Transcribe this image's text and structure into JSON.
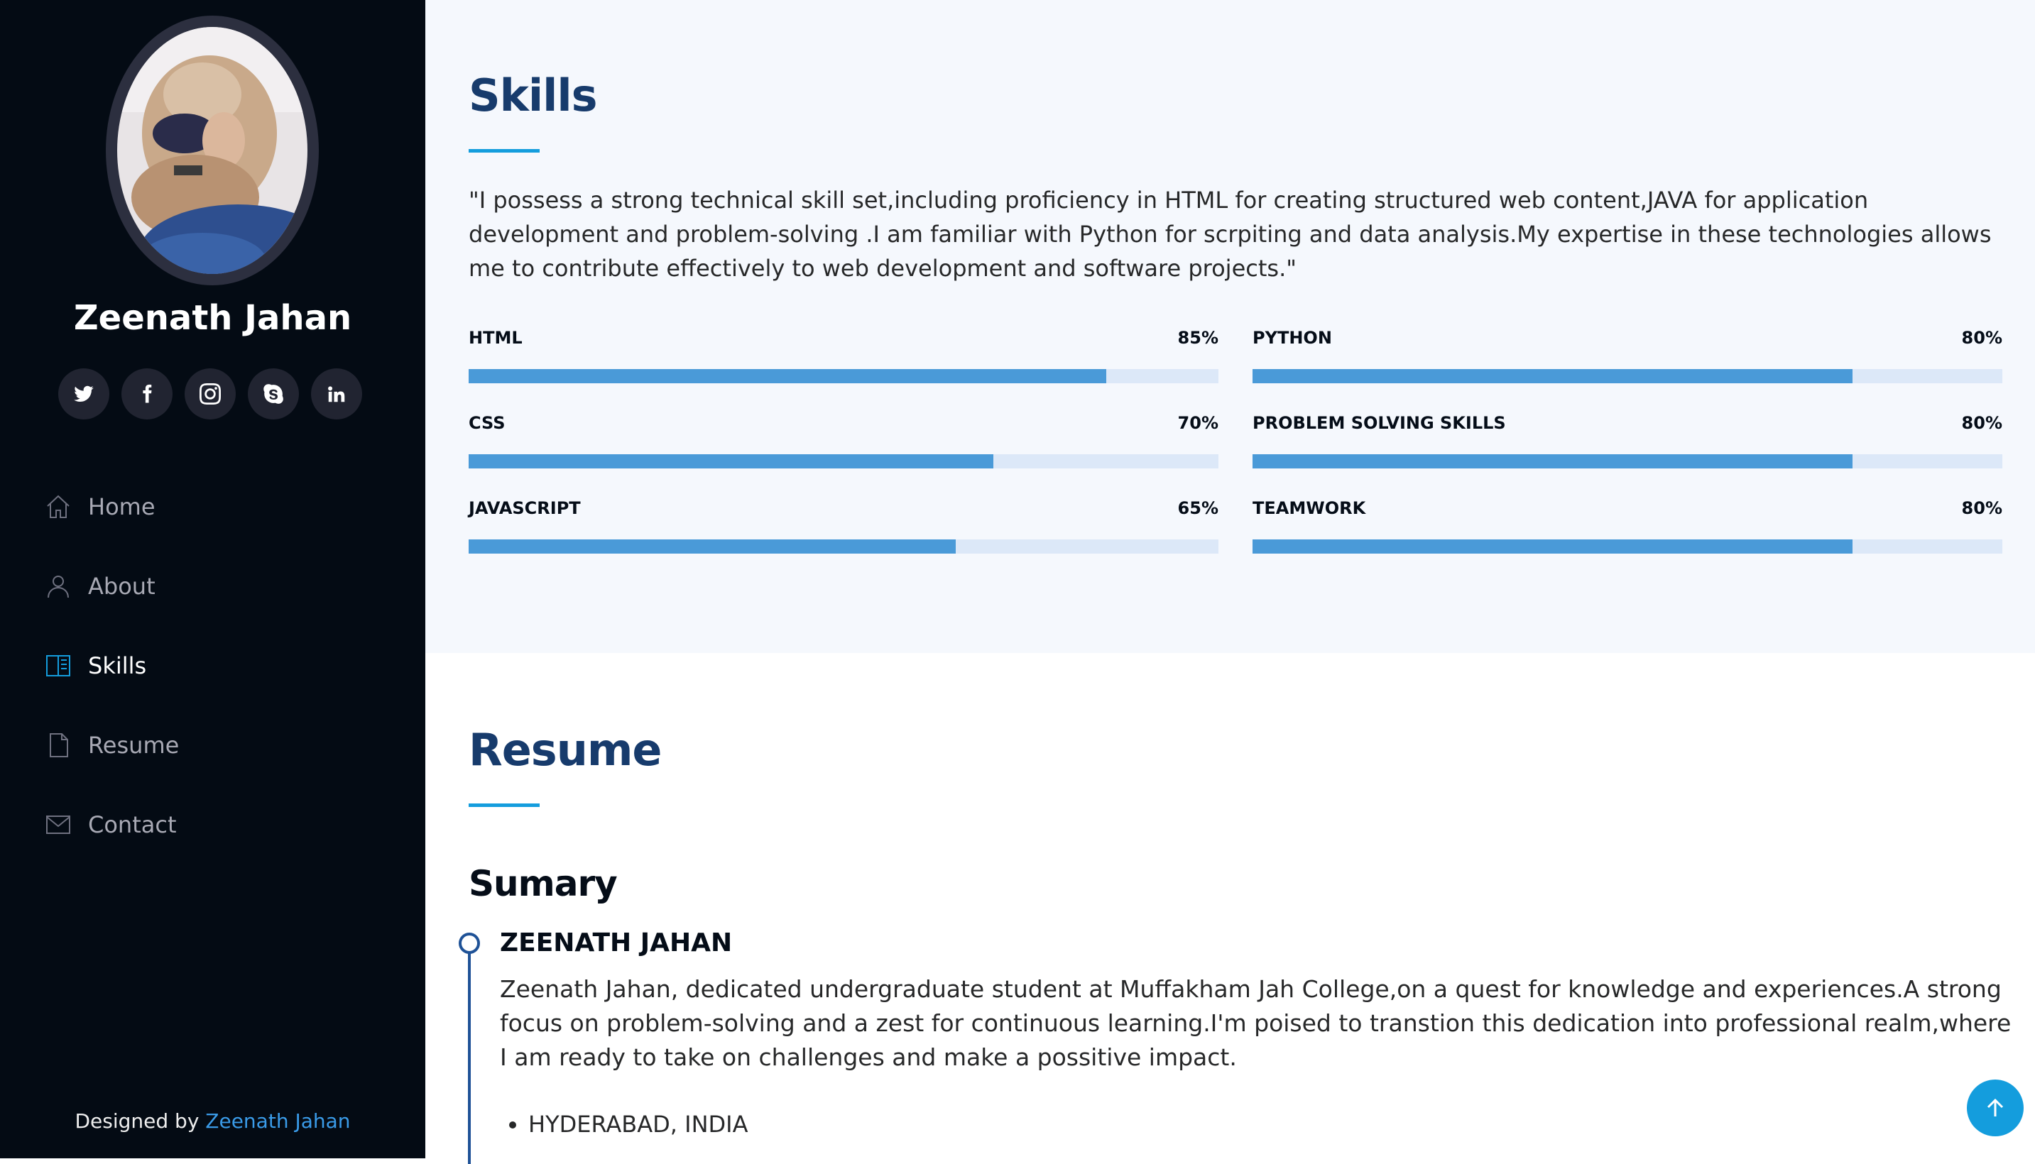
{
  "sidebar": {
    "name": "Zeenath Jahan",
    "social": [
      {
        "icon": "twitter-icon"
      },
      {
        "icon": "facebook-icon"
      },
      {
        "icon": "instagram-icon"
      },
      {
        "icon": "skype-icon"
      },
      {
        "icon": "linkedin-icon"
      }
    ],
    "nav": [
      {
        "label": "Home",
        "icon": "home-icon"
      },
      {
        "label": "About",
        "icon": "person-icon"
      },
      {
        "label": "Skills",
        "icon": "book-icon",
        "active": true
      },
      {
        "label": "Resume",
        "icon": "file-icon"
      },
      {
        "label": "Contact",
        "icon": "envelope-icon"
      }
    ],
    "footer": {
      "prefix": "Designed by",
      "link": "Zeenath Jahan"
    }
  },
  "skills": {
    "title": "Skills",
    "description": "\"I possess a strong technical skill set,including proficiency in HTML for creating structured web content,JAVA for application development and problem-solving .I am familiar with Python for scrpiting and data analysis.My expertise in these technologies allows me to contribute effectively to web development and software projects.\"",
    "items": [
      {
        "name": "HTML",
        "percent_label": "85%",
        "value": 85
      },
      {
        "name": "PYTHON",
        "percent_label": "80%",
        "value": 80
      },
      {
        "name": "CSS",
        "percent_label": "70%",
        "value": 70
      },
      {
        "name": "PROBLEM SOLVING SKILLS",
        "percent_label": "80%",
        "value": 80
      },
      {
        "name": "JAVASCRIPT",
        "percent_label": "65%",
        "value": 65
      },
      {
        "name": "TEAMWORK",
        "percent_label": "80%",
        "value": 80
      }
    ]
  },
  "resume": {
    "title": "Resume",
    "summary_heading": "Sumary",
    "item_title": "ZEENATH JAHAN",
    "item_text": "Zeenath Jahan, dedicated undergraduate student at Muffakham Jah College,on a quest for knowledge and experiences.A strong focus on problem-solving and a zest for continuous learning.I'm poised to transtion this dedication into professional realm,where I am ready to take on challenges and make a possitive impact.",
    "list": [
      "HYDERABAD, INDIA"
    ]
  },
  "colors": {
    "sidebar_bg": "#040b14",
    "accent": "#149ddd",
    "title": "#173b6c",
    "skill_fill": "#4a9ad8"
  }
}
